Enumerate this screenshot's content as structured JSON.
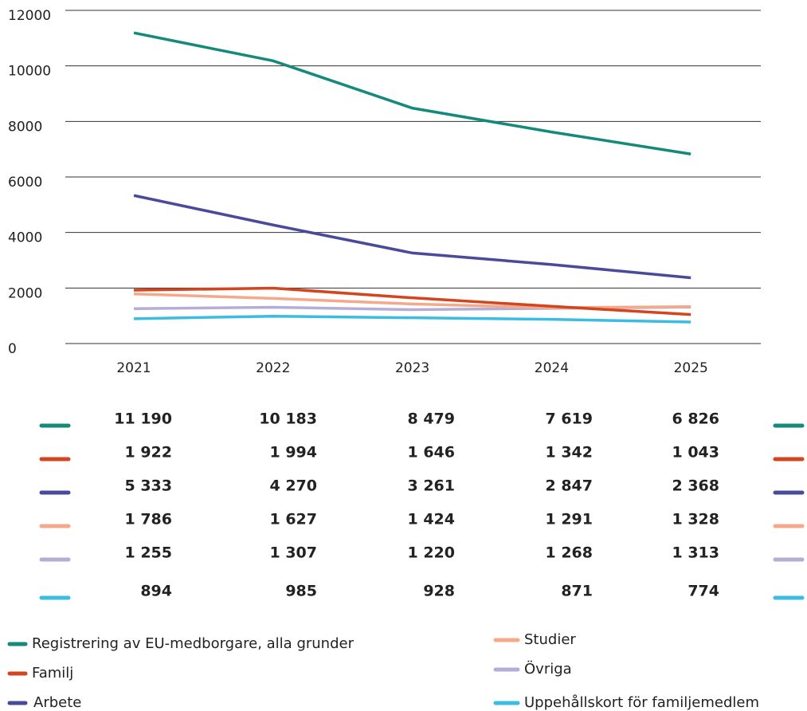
{
  "chart_data": {
    "type": "line",
    "categories": [
      "2021",
      "2022",
      "2023",
      "2024",
      "2025"
    ],
    "ylim": [
      0,
      12000
    ],
    "yticks": [
      0,
      2000,
      4000,
      6000,
      8000,
      10000,
      12000
    ],
    "grid": true,
    "series": [
      {
        "name": "Registrering av EU-medborgare, alla grunder",
        "color": "#138a7a",
        "values": [
          11190,
          10183,
          8479,
          7619,
          6826
        ],
        "value_labels": [
          "11 190",
          "10 183",
          "8 479",
          "7 619",
          "6 826"
        ]
      },
      {
        "name": "Familj",
        "color": "#d2451e",
        "values": [
          1922,
          1994,
          1646,
          1342,
          1043
        ],
        "value_labels": [
          "1 922",
          "1 994",
          "1 646",
          "1 342",
          "1 043"
        ]
      },
      {
        "name": "Arbete",
        "color": "#4a4a9c",
        "values": [
          5333,
          4270,
          3261,
          2847,
          2368
        ],
        "value_labels": [
          "5 333",
          "4 270",
          "3 261",
          "2 847",
          "2 368"
        ]
      },
      {
        "name": "Studier",
        "color": "#f4a98a",
        "values": [
          1786,
          1627,
          1424,
          1291,
          1328
        ],
        "value_labels": [
          "1 786",
          "1 627",
          "1 424",
          "1 291",
          "1 328"
        ]
      },
      {
        "name": "Övriga",
        "color": "#b4aed6",
        "values": [
          1255,
          1307,
          1220,
          1268,
          1313
        ],
        "value_labels": [
          "1 255",
          "1 307",
          "1 220",
          "1 268",
          "1 313"
        ]
      },
      {
        "name": "Uppehållskort för familjemedlem",
        "color": "#3bbde3",
        "values": [
          894,
          985,
          928,
          871,
          774
        ],
        "value_labels": [
          "894",
          "985",
          "928",
          "871",
          "774"
        ]
      }
    ]
  }
}
